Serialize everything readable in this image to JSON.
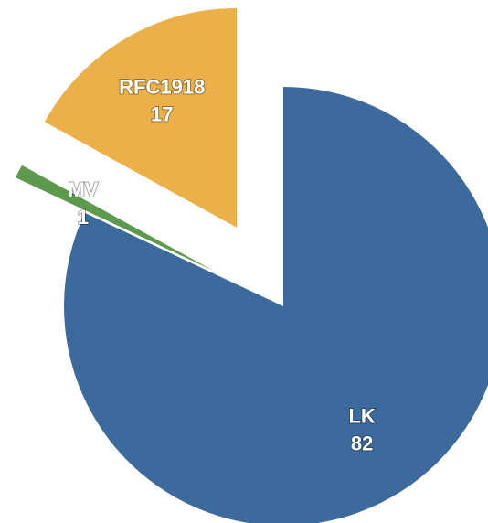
{
  "chart_data": {
    "type": "pie",
    "categories": [
      "LK",
      "MV",
      "RFC1918"
    ],
    "values": [
      82,
      1,
      17
    ],
    "colors": [
      "#3d6a9c",
      "#5e9a4e",
      "#ecb04a"
    ]
  }
}
